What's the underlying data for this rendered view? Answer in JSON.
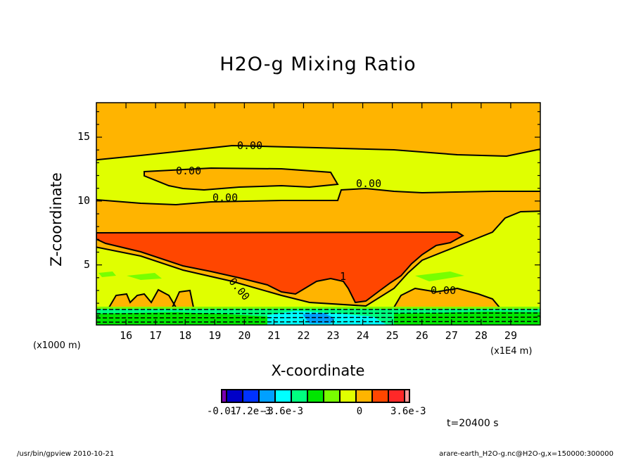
{
  "chart_data": {
    "type": "heatmap",
    "title": "H2O-g Mixing Ratio",
    "xlabel": "X-coordinate",
    "ylabel": "Z-coordinate",
    "x_unit_left": "(x1000 m)",
    "x_unit_right": "(x1E4 m)",
    "xlim": [
      15,
      30
    ],
    "ylim": [
      0.3,
      17.7
    ],
    "x_ticks": [
      "16",
      "17",
      "18",
      "19",
      "20",
      "21",
      "22",
      "23",
      "24",
      "25",
      "26",
      "27",
      "28",
      "29"
    ],
    "y_ticks": [
      "5",
      "10",
      "15"
    ],
    "contour_labels": [
      "0.00",
      "0.00",
      "0.00",
      "0.00",
      "0.00",
      "0.00",
      "1"
    ],
    "colorbar": {
      "tick_labels": [
        "-0.01",
        "-7.2e-3",
        "-3.6e-3",
        "0",
        "3.6e-3"
      ],
      "colors": [
        "#7a00b0",
        "#0000c8",
        "#0032ff",
        "#00a0ff",
        "#00ffff",
        "#00ff80",
        "#00e600",
        "#78ff00",
        "#e0ff00",
        "#ffb400",
        "#ff4600",
        "#ff2828",
        "#ff9a9a"
      ]
    },
    "time_label": "t=20400 s"
  },
  "footer": {
    "left": "/usr/bin/gpview  2010-10-21",
    "right": "arare-earth_H2O-g.nc@H2O-g,x=150000:300000"
  }
}
